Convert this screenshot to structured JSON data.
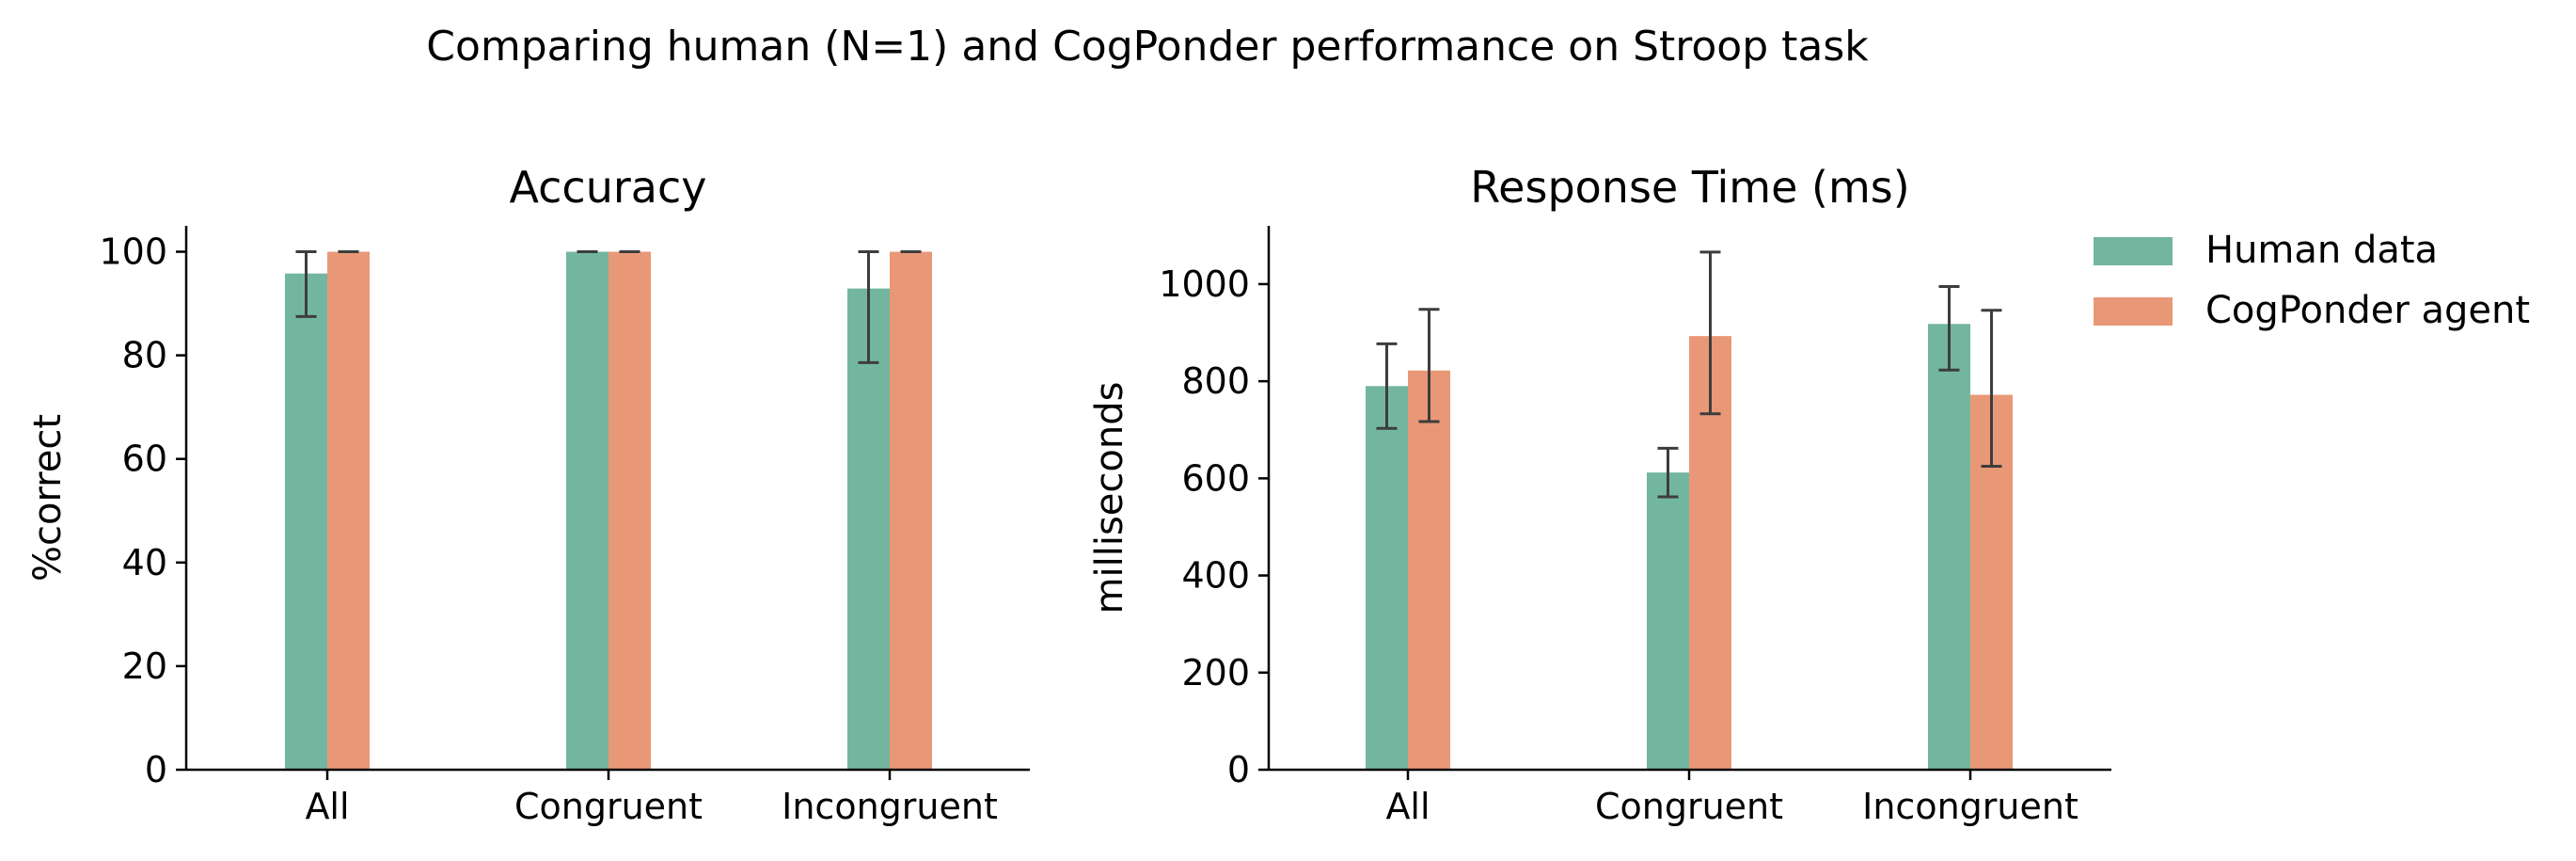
{
  "suptitle": "Comparing human (N=1) and CogPonder performance on Stroop task",
  "legend": {
    "placement": "upper-right",
    "entries": [
      {
        "label": "Human data",
        "color": "#73b6a0"
      },
      {
        "label": "CogPonder agent",
        "color": "#e99877"
      }
    ]
  },
  "chart_data": [
    {
      "type": "bar",
      "title": "Accuracy",
      "xlabel": "",
      "ylabel": "%correct",
      "ylim": [
        0,
        105
      ],
      "yticks": [
        0,
        20,
        40,
        60,
        80,
        100
      ],
      "categories": [
        "All",
        "Congruent",
        "Incongruent"
      ],
      "series": [
        {
          "name": "Human data",
          "color": "#73b6a0",
          "values": [
            95.8,
            100,
            92.9
          ],
          "err_low": [
            87.5,
            100,
            78.6
          ],
          "err_high": [
            100,
            100,
            100
          ]
        },
        {
          "name": "CogPonder agent",
          "color": "#e99877",
          "values": [
            100,
            100,
            100
          ],
          "err_low": [
            100,
            100,
            100
          ],
          "err_high": [
            100,
            100,
            100
          ]
        }
      ],
      "grid": false
    },
    {
      "type": "bar",
      "title": "Response Time (ms)",
      "xlabel": "",
      "ylabel": "milliseconds",
      "ylim": [
        0,
        1120
      ],
      "yticks": [
        0,
        200,
        400,
        600,
        800,
        1000
      ],
      "categories": [
        "All",
        "Congruent",
        "Incongruent"
      ],
      "series": [
        {
          "name": "Human data",
          "color": "#73b6a0",
          "values": [
            790,
            612,
            918
          ],
          "err_low": [
            703,
            562,
            823
          ],
          "err_high": [
            877,
            662,
            995
          ]
        },
        {
          "name": "CogPonder agent",
          "color": "#e99877",
          "values": [
            822,
            893,
            772
          ],
          "err_low": [
            717,
            733,
            625
          ],
          "err_high": [
            948,
            1066,
            946
          ]
        }
      ],
      "grid": false
    }
  ]
}
